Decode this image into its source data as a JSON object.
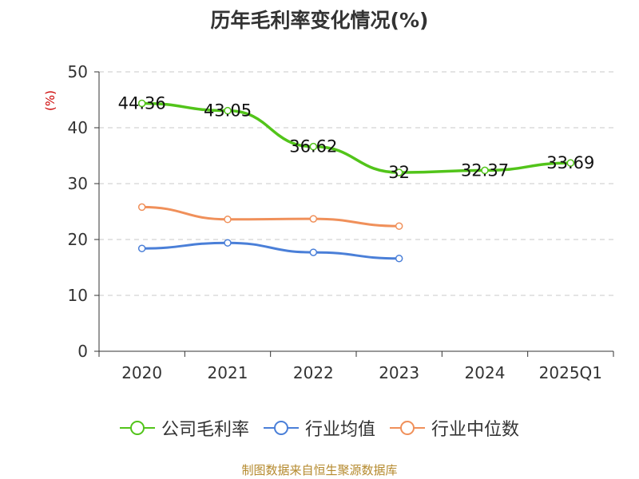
{
  "chart_data": {
    "type": "line",
    "title": "历年毛利率变化情况(%)",
    "ylabel": "(%)",
    "categories": [
      "2020",
      "2021",
      "2022",
      "2023",
      "2024",
      "2025Q1"
    ],
    "ylim": [
      0,
      50
    ],
    "yticks": [
      0,
      10,
      20,
      30,
      40,
      50
    ],
    "grid": true,
    "legend_position": "bottom",
    "series": [
      {
        "name": "公司毛利率",
        "color": "#52c41a",
        "values": [
          44.36,
          43.05,
          36.62,
          32,
          32.37,
          33.69
        ],
        "labels": [
          "44.36",
          "43.05",
          "36.62",
          "32",
          "32.37",
          "33.69"
        ]
      },
      {
        "name": "行业均值",
        "color": "#4a7fd8",
        "values": [
          18.4,
          19.4,
          17.7,
          16.6,
          null,
          null
        ]
      },
      {
        "name": "行业中位数",
        "color": "#f0905a",
        "values": [
          25.8,
          23.6,
          23.7,
          22.4,
          null,
          null
        ]
      }
    ]
  },
  "source": "制图数据来自恒生聚源数据库"
}
